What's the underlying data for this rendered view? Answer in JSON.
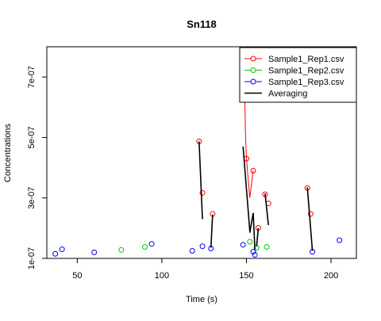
{
  "chart_data": {
    "type": "scatter",
    "title": "Sn118",
    "xlabel": "Time (s)",
    "ylabel": "Concentrations",
    "xlim": [
      32,
      215
    ],
    "ylim": [
      1e-07,
      8e-07
    ],
    "x_ticks": [
      50,
      100,
      150,
      200
    ],
    "x_tick_labels": [
      "50",
      "100",
      "150",
      "200"
    ],
    "y_ticks": [
      1e-07,
      3e-07,
      5e-07,
      7e-07
    ],
    "y_tick_labels": [
      "1e-07",
      "3e-07",
      "5e-07",
      "7e-07"
    ],
    "legend_position": "top-right",
    "series": [
      {
        "name": "Sample1_Rep1.csv",
        "color": "#ff0000",
        "marker": "circle",
        "points": [
          {
            "x": 122,
            "y": 4.87e-07
          },
          {
            "x": 124,
            "y": 3.17e-07
          },
          {
            "x": 130,
            "y": 2.47e-07
          },
          {
            "x": 150,
            "y": 4.3e-07
          },
          {
            "x": 154,
            "y": 3.9e-07
          },
          {
            "x": 157,
            "y": 2.01e-07
          },
          {
            "x": 161,
            "y": 3.12e-07
          },
          {
            "x": 163,
            "y": 2.82e-07
          },
          {
            "x": 186,
            "y": 3.33e-07
          },
          {
            "x": 188,
            "y": 2.47e-07
          }
        ],
        "line": [
          {
            "x": 148.3,
            "y": 8e-07
          },
          {
            "x": 149.5,
            "y": 5e-07
          },
          {
            "x": 150,
            "y": 4.3e-07
          },
          {
            "x": 152,
            "y": 3e-07
          },
          {
            "x": 154,
            "y": 3.9e-07
          }
        ]
      },
      {
        "name": "Sample1_Rep2.csv",
        "color": "#00cc00",
        "marker": "circle",
        "points": [
          {
            "x": 76,
            "y": 1.28e-07
          },
          {
            "x": 90,
            "y": 1.38e-07
          },
          {
            "x": 152,
            "y": 1.55e-07
          },
          {
            "x": 156,
            "y": 1.35e-07
          },
          {
            "x": 162,
            "y": 1.38e-07
          }
        ]
      },
      {
        "name": "Sample1_Rep3.csv",
        "color": "#0000ff",
        "marker": "circle",
        "points": [
          {
            "x": 37,
            "y": 1.15e-07
          },
          {
            "x": 41,
            "y": 1.3e-07
          },
          {
            "x": 60,
            "y": 1.2e-07
          },
          {
            "x": 94,
            "y": 1.48e-07
          },
          {
            "x": 118,
            "y": 1.25e-07
          },
          {
            "x": 124,
            "y": 1.4e-07
          },
          {
            "x": 129,
            "y": 1.33e-07
          },
          {
            "x": 148,
            "y": 1.45e-07
          },
          {
            "x": 154,
            "y": 1.22e-07
          },
          {
            "x": 155,
            "y": 1.12e-07
          },
          {
            "x": 189,
            "y": 1.22e-07
          },
          {
            "x": 205,
            "y": 1.6e-07
          }
        ]
      },
      {
        "name": "Averaging",
        "color": "#000000",
        "type": "segments",
        "segments": [
          [
            {
              "x": 122,
              "y": 4.87e-07
            },
            {
              "x": 124,
              "y": 2.3e-07
            }
          ],
          [
            {
              "x": 129,
              "y": 1.35e-07
            },
            {
              "x": 130,
              "y": 2.45e-07
            }
          ],
          [
            {
              "x": 148,
              "y": 4.7e-07
            },
            {
              "x": 152,
              "y": 1.9e-07
            }
          ],
          [
            {
              "x": 152,
              "y": 1.85e-07
            },
            {
              "x": 154,
              "y": 2.5e-07
            }
          ],
          [
            {
              "x": 154,
              "y": 2.5e-07
            },
            {
              "x": 155,
              "y": 1.3e-07
            }
          ],
          [
            {
              "x": 156,
              "y": 1.4e-07
            },
            {
              "x": 157,
              "y": 2e-07
            }
          ],
          [
            {
              "x": 161,
              "y": 3.15e-07
            },
            {
              "x": 163,
              "y": 2.1e-07
            }
          ],
          [
            {
              "x": 186,
              "y": 3.35e-07
            },
            {
              "x": 189,
              "y": 1.25e-07
            }
          ]
        ]
      }
    ]
  }
}
